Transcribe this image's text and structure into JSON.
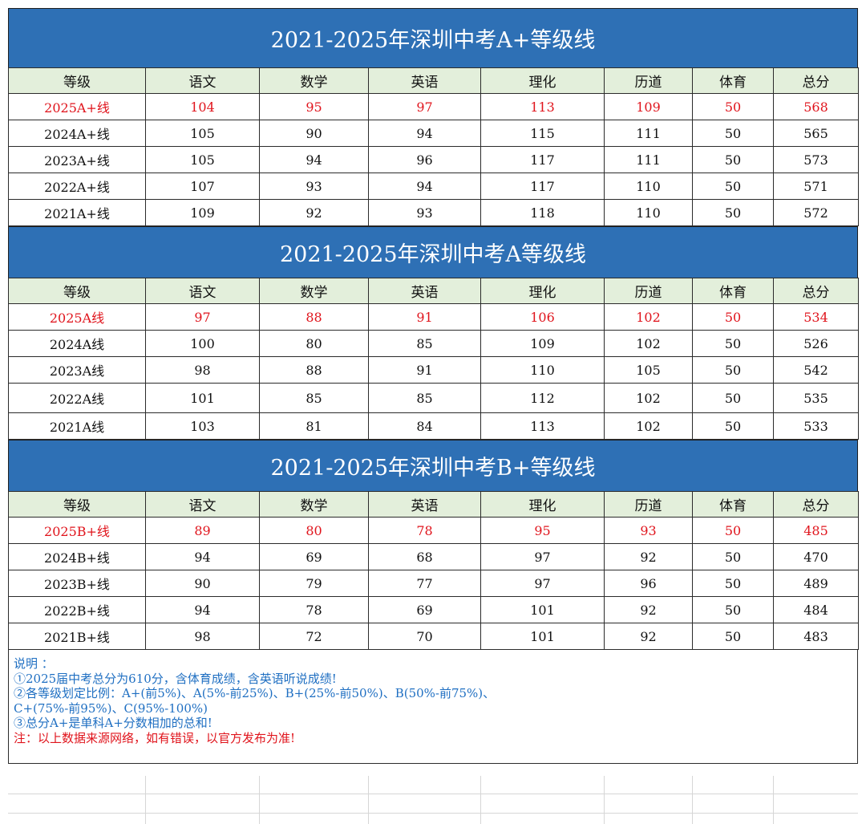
{
  "headers": [
    "等级",
    "语文",
    "数学",
    "英语",
    "理化",
    "历道",
    "体育",
    "总分"
  ],
  "sections": [
    {
      "title": "2021-2025年深圳中考A+等级线",
      "rows": [
        [
          "2025A+线",
          "104",
          "95",
          "97",
          "113",
          "109",
          "50",
          "568"
        ],
        [
          "2024A+线",
          "105",
          "90",
          "94",
          "115",
          "111",
          "50",
          "565"
        ],
        [
          "2023A+线",
          "105",
          "94",
          "96",
          "117",
          "111",
          "50",
          "573"
        ],
        [
          "2022A+线",
          "107",
          "93",
          "94",
          "117",
          "110",
          "50",
          "571"
        ],
        [
          "2021A+线",
          "109",
          "92",
          "93",
          "118",
          "110",
          "50",
          "572"
        ]
      ]
    },
    {
      "title": "2021-2025年深圳中考A等级线",
      "rows": [
        [
          "2025A线",
          "97",
          "88",
          "91",
          "106",
          "102",
          "50",
          "534"
        ],
        [
          "2024A线",
          "100",
          "80",
          "85",
          "109",
          "102",
          "50",
          "526"
        ],
        [
          "2023A线",
          "98",
          "88",
          "91",
          "110",
          "105",
          "50",
          "542"
        ],
        [
          "2022A线",
          "101",
          "85",
          "85",
          "112",
          "102",
          "50",
          "535"
        ],
        [
          "2021A线",
          "103",
          "81",
          "84",
          "113",
          "102",
          "50",
          "533"
        ]
      ]
    },
    {
      "title": "2021-2025年深圳中考B+等级线",
      "rows": [
        [
          "2025B+线",
          "89",
          "80",
          "78",
          "95",
          "93",
          "50",
          "485"
        ],
        [
          "2024B+线",
          "94",
          "69",
          "68",
          "97",
          "92",
          "50",
          "470"
        ],
        [
          "2023B+线",
          "90",
          "79",
          "77",
          "97",
          "96",
          "50",
          "489"
        ],
        [
          "2022B+线",
          "94",
          "78",
          "69",
          "101",
          "92",
          "50",
          "484"
        ],
        [
          "2021B+线",
          "98",
          "72",
          "70",
          "101",
          "92",
          "50",
          "483"
        ]
      ]
    }
  ],
  "notes": {
    "heading": "说明 ：",
    "line1": "①2025届中考总分为610分，含体育成绩，含英语听说成绩!",
    "line2": "②各等级划定比例：A+(前5%)、A(5%-前25%)、B+(25%-前50%)、B(50%-前75%)、",
    "line3": "C+(75%-前95%)、C(95%-100%)",
    "line4": "③总分A+是单科A+分数相加的总和!",
    "disclaimer": "注：以上数据来源网络，如有错误，以官方发布为准!"
  },
  "colors": {
    "title_bg": "#2e70b5",
    "header_bg": "#e3efdb",
    "highlight": "#e0141c",
    "note_blue": "#1f6fc2"
  }
}
